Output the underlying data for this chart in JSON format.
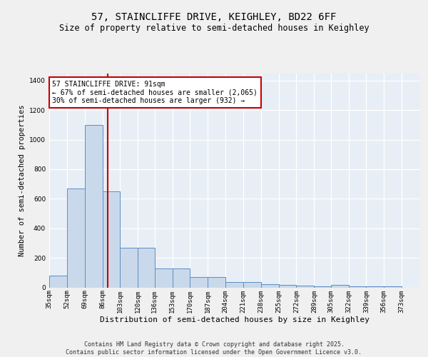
{
  "title1": "57, STAINCLIFFE DRIVE, KEIGHLEY, BD22 6FF",
  "title2": "Size of property relative to semi-detached houses in Keighley",
  "xlabel": "Distribution of semi-detached houses by size in Keighley",
  "ylabel": "Number of semi-detached properties",
  "bin_edges": [
    35,
    52,
    69,
    86,
    103,
    120,
    136,
    153,
    170,
    187,
    204,
    221,
    238,
    255,
    272,
    289,
    305,
    322,
    339,
    356,
    373,
    390
  ],
  "bar_heights": [
    80,
    670,
    1100,
    650,
    270,
    270,
    130,
    130,
    70,
    70,
    35,
    35,
    20,
    15,
    10,
    8,
    15,
    8,
    8,
    8,
    0
  ],
  "bar_color": "#c9d9eb",
  "bar_edge_color": "#5b8ec4",
  "property_size": 91,
  "red_line_color": "#cc0000",
  "annotation_text": "57 STAINCLIFFE DRIVE: 91sqm\n← 67% of semi-detached houses are smaller (2,065)\n30% of semi-detached houses are larger (932) →",
  "annotation_box_color": "#ffffff",
  "annotation_box_edge_color": "#cc0000",
  "ylim": [
    0,
    1450
  ],
  "xlim": [
    35,
    390
  ],
  "background_color": "#e8eef5",
  "fig_background_color": "#f0f0f0",
  "grid_color": "#ffffff",
  "footer_text": "Contains HM Land Registry data © Crown copyright and database right 2025.\nContains public sector information licensed under the Open Government Licence v3.0.",
  "tick_labels": [
    "35sqm",
    "52sqm",
    "69sqm",
    "86sqm",
    "103sqm",
    "120sqm",
    "136sqm",
    "153sqm",
    "170sqm",
    "187sqm",
    "204sqm",
    "221sqm",
    "238sqm",
    "255sqm",
    "272sqm",
    "289sqm",
    "305sqm",
    "322sqm",
    "339sqm",
    "356sqm",
    "373sqm"
  ],
  "title1_fontsize": 10,
  "title2_fontsize": 8.5,
  "ylabel_fontsize": 7.5,
  "xlabel_fontsize": 8,
  "tick_fontsize": 6.5,
  "annotation_fontsize": 7,
  "footer_fontsize": 6
}
